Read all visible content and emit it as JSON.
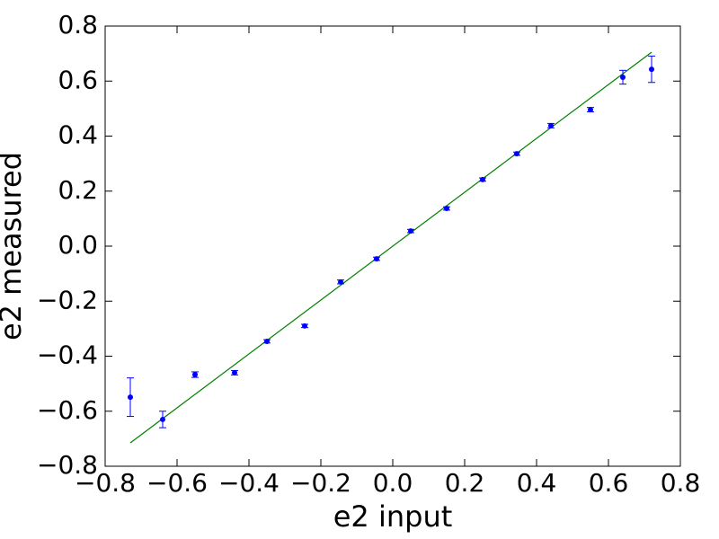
{
  "chart_data": {
    "type": "scatter",
    "xlabel": "e2 input",
    "ylabel": "e2 measured",
    "xlim": [
      -0.8,
      0.8
    ],
    "ylim": [
      -0.8,
      0.8
    ],
    "xticks": [
      {
        "value": -0.8,
        "label": "−0.8"
      },
      {
        "value": -0.6,
        "label": "−0.6"
      },
      {
        "value": -0.4,
        "label": "−0.4"
      },
      {
        "value": -0.2,
        "label": "−0.2"
      },
      {
        "value": 0,
        "label": "0.0"
      },
      0.2,
      0.4,
      0.6,
      0.8
    ],
    "yticks": [
      {
        "value": -0.8,
        "label": "−0.8"
      },
      {
        "value": -0.6,
        "label": "−0.6"
      },
      {
        "value": -0.4,
        "label": "−0.4"
      },
      {
        "value": -0.2,
        "label": "−0.2"
      },
      {
        "value": 0,
        "label": "0.0"
      },
      0.2,
      0.4,
      0.6,
      0.8
    ],
    "grid": false,
    "series": [
      {
        "type": "errorbar",
        "color": "#0000ff",
        "x": [
          -0.73,
          -0.64,
          -0.55,
          -0.44,
          -0.35,
          -0.245,
          -0.145,
          -0.045,
          0.05,
          0.15,
          0.25,
          0.345,
          0.44,
          0.55,
          0.64,
          0.72
        ],
        "values": [
          -0.549,
          -0.63,
          -0.467,
          -0.46,
          -0.346,
          -0.29,
          -0.13,
          -0.046,
          0.055,
          0.137,
          0.242,
          0.336,
          0.438,
          0.496,
          0.614,
          0.643
        ],
        "errors": [
          0.07,
          0.03,
          0.01,
          0.008,
          0.006,
          0.006,
          0.007,
          0.006,
          0.006,
          0.006,
          0.006,
          0.006,
          0.008,
          0.008,
          0.025,
          0.048
        ]
      },
      {
        "type": "line",
        "color": "#008000",
        "x": [
          -0.73,
          0.72
        ],
        "values": [
          -0.715,
          0.705
        ]
      }
    ]
  }
}
